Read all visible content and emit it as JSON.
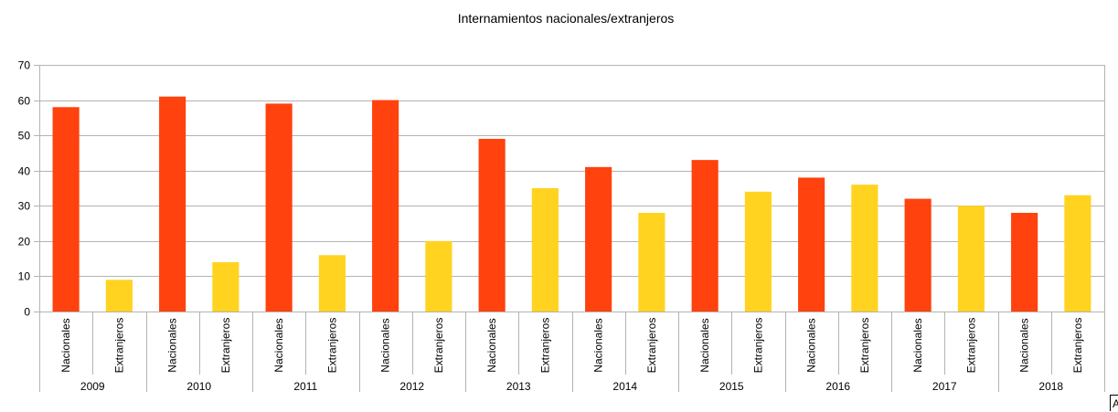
{
  "chart_data": {
    "type": "bar",
    "title": "Internamientos nacionales/extranjeros",
    "xlabel": "",
    "ylabel": "",
    "ylim": [
      0,
      70
    ],
    "yticks": [
      0,
      10,
      20,
      30,
      40,
      50,
      60,
      70
    ],
    "grid": true,
    "legend": "none",
    "groups": [
      "2009",
      "2010",
      "2011",
      "2012",
      "2013",
      "2014",
      "2015",
      "2016",
      "2017",
      "2018"
    ],
    "subcategories": [
      "Nacionales",
      "Extranjeros"
    ],
    "colors": {
      "Nacionales": "#ff420e",
      "Extranjeros": "#ffd320"
    },
    "values": [
      [
        58,
        9
      ],
      [
        61,
        14
      ],
      [
        59,
        16
      ],
      [
        60,
        20
      ],
      [
        49,
        35
      ],
      [
        41,
        28
      ],
      [
        43,
        34
      ],
      [
        38,
        36
      ],
      [
        32,
        30
      ],
      [
        28,
        33
      ]
    ]
  },
  "corner_text": "A"
}
